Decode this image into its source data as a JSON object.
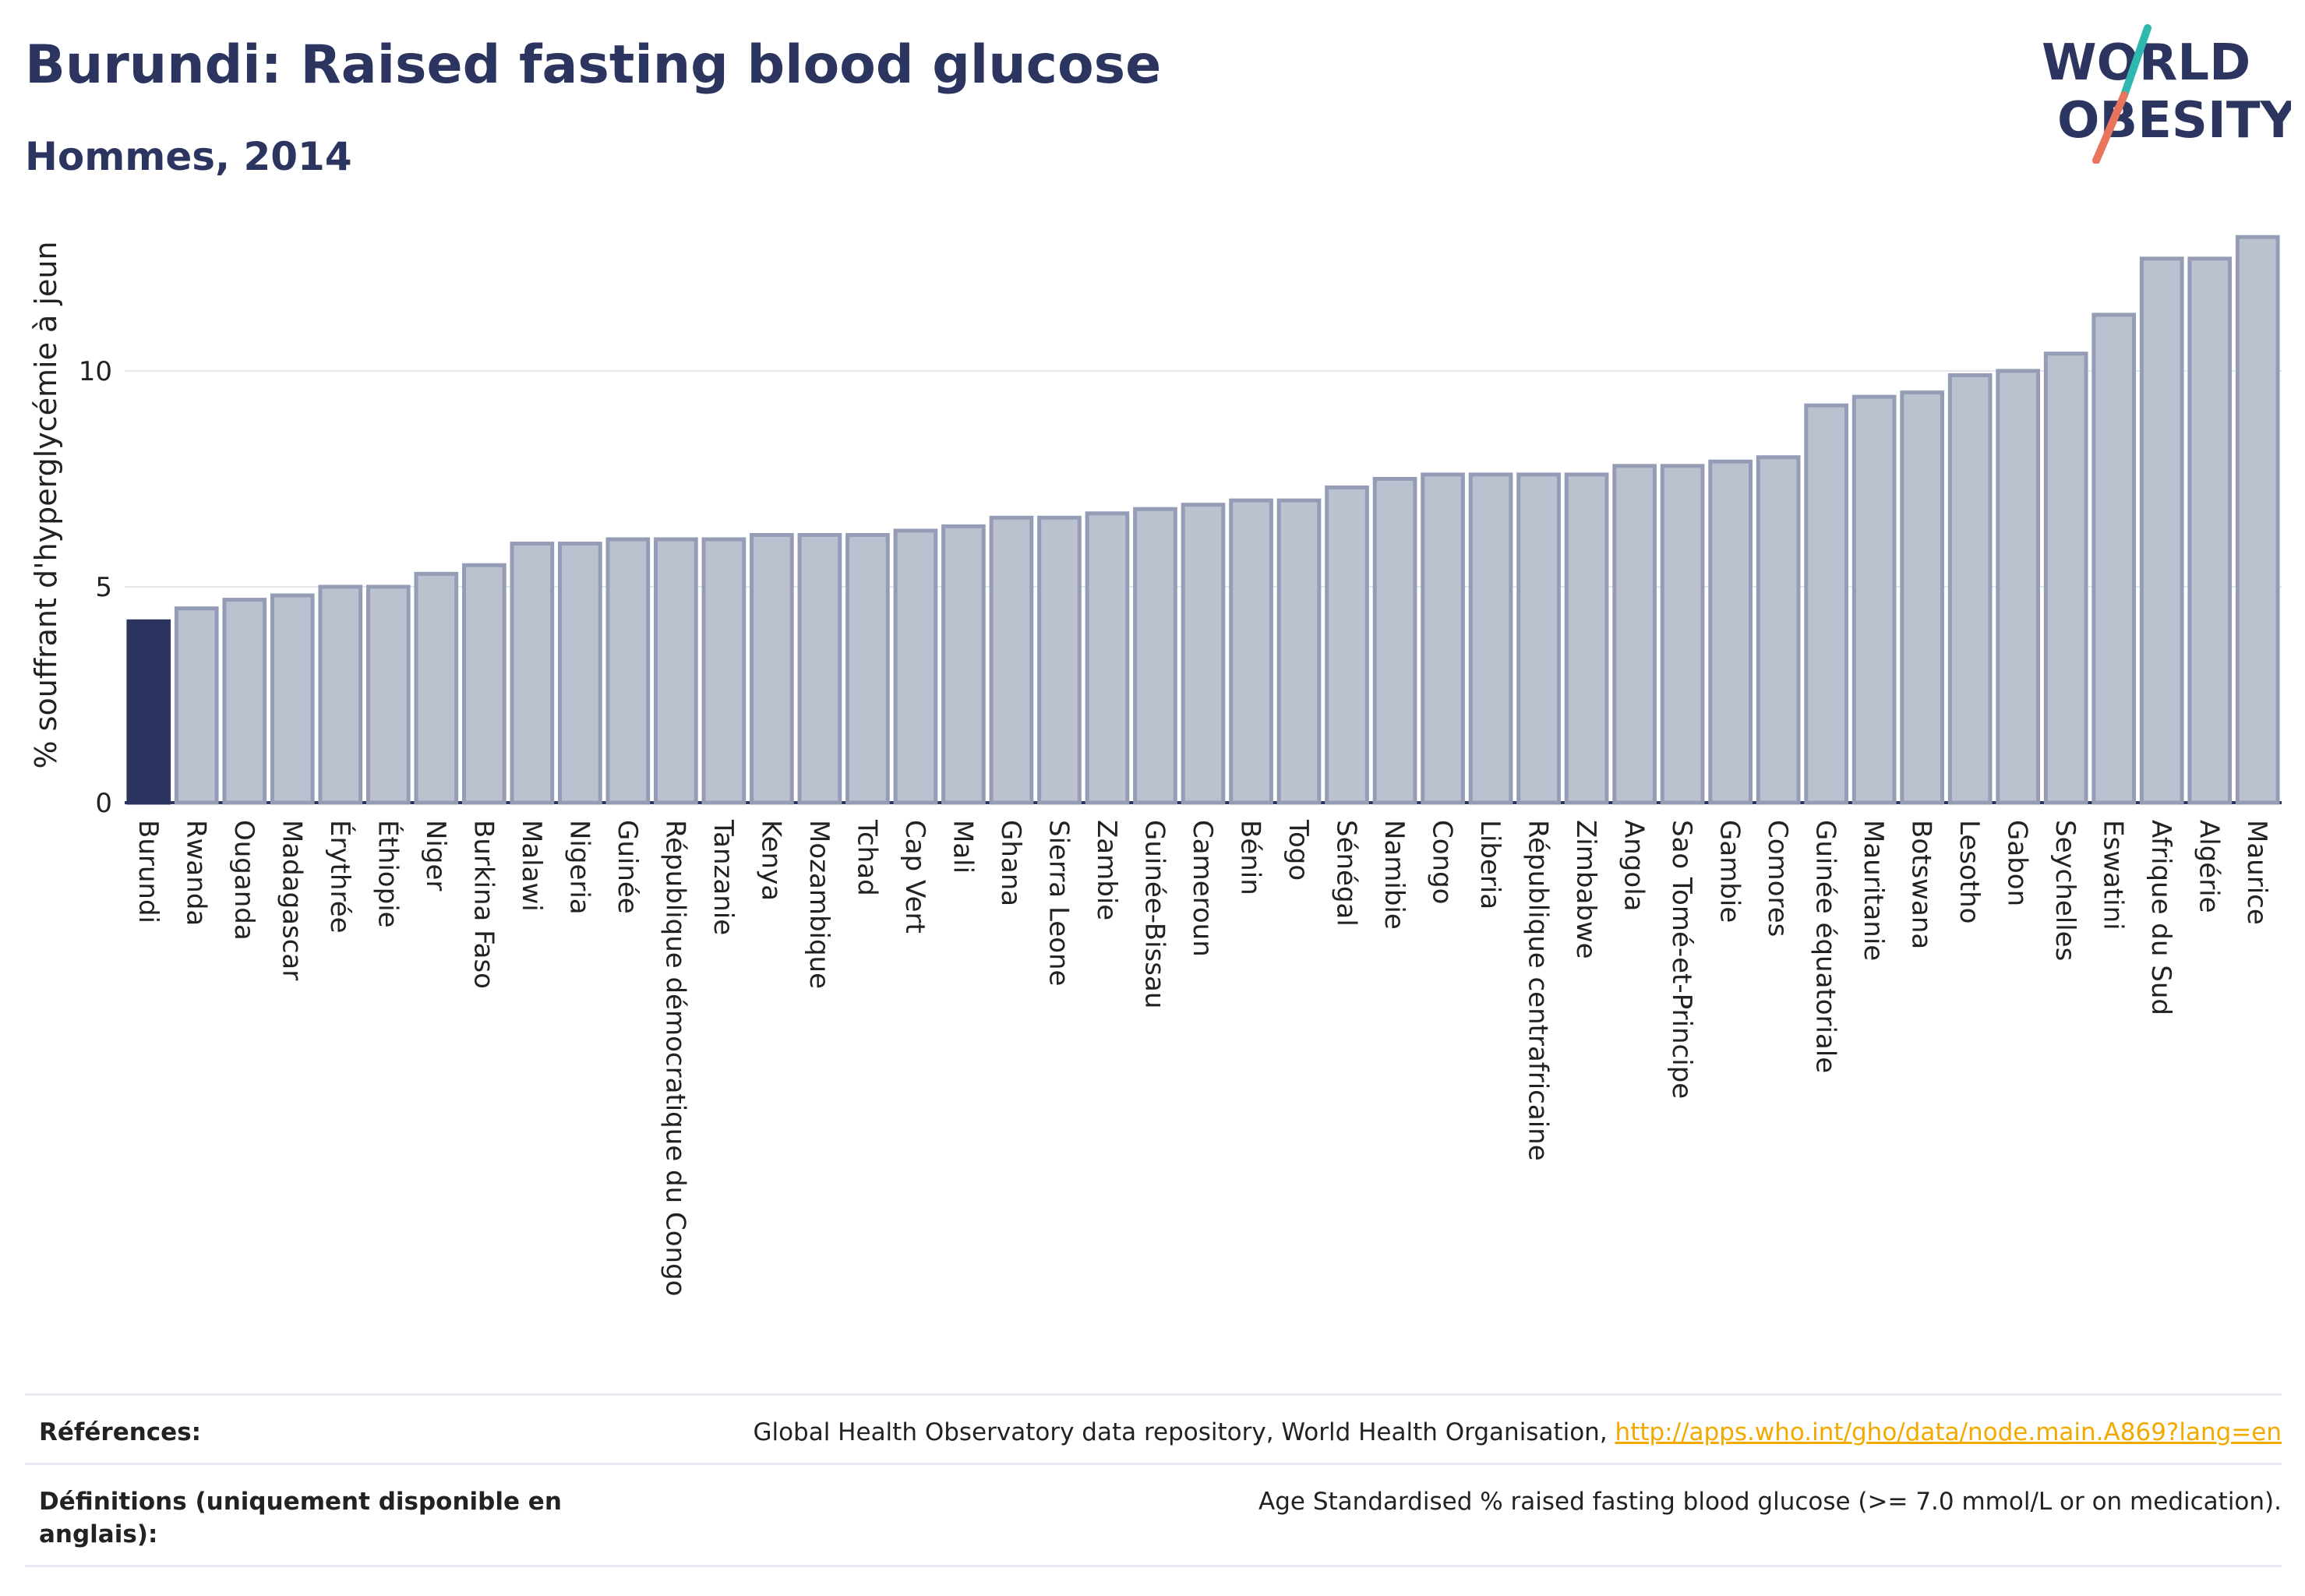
{
  "title": "Burundi: Raised fasting blood glucose",
  "subtitle": "Hommes, 2014",
  "logo": {
    "line1": "WORLD",
    "line2": "OBESITY"
  },
  "colors": {
    "title": "#2b3560",
    "highlight_bar": "#2b3560",
    "other_bar_fill": "#bcc1cf",
    "other_bar_stroke": "#959cb6",
    "link": "#f2a900",
    "logo_slash_top": "#2fb8b0",
    "logo_slash_bottom": "#e8745e"
  },
  "chart_data": {
    "type": "bar",
    "ylabel": "% souffrant d'hyperglycémie à jeun",
    "ylim": [
      0,
      13.5
    ],
    "yticks": [
      0,
      5,
      10
    ],
    "highlight": "Burundi",
    "categories": [
      "Burundi",
      "Rwanda",
      "Ougandа",
      "Madagascar",
      "Érythrée",
      "Éthiopie",
      "Niger",
      "Burkina Faso",
      "Malawi",
      "Nigeria",
      "Guinée",
      "République démocratique du Congo",
      "Tanzanie",
      "Kenya",
      "Mozambique",
      "Tchad",
      "Cap Vert",
      "Mali",
      "Ghana",
      "Sierra Leone",
      "Zambie",
      "Guinée-Bissau",
      "Cameroun",
      "Bénin",
      "Togo",
      "Sénégal",
      "Namibie",
      "Congo",
      "Liberia",
      "République centrafricaine",
      "Zimbabwe",
      "Angola",
      "Sao Tomé-et-Principe",
      "Gambie",
      "Comores",
      "Guinée équatoriale",
      "Mauritanie",
      "Botswana",
      "Lesotho",
      "Gabon",
      "Seychelles",
      "Eswatini",
      "Afrique du Sud",
      "Algérie",
      "Maurice"
    ],
    "values": [
      4.2,
      4.5,
      4.7,
      4.8,
      5.0,
      5.0,
      5.3,
      5.5,
      6.0,
      6.0,
      6.1,
      6.1,
      6.1,
      6.2,
      6.2,
      6.2,
      6.3,
      6.4,
      6.6,
      6.6,
      6.7,
      6.8,
      6.9,
      7.0,
      7.0,
      7.3,
      7.5,
      7.6,
      7.6,
      7.6,
      7.6,
      7.8,
      7.8,
      7.9,
      8.0,
      9.2,
      9.4,
      9.5,
      9.9,
      10.0,
      10.4,
      11.3,
      12.6,
      12.6,
      13.1
    ]
  },
  "references": {
    "ref_label": "Références:",
    "ref_text": "Global Health Observatory data repository, World Health Organisation, ",
    "ref_link": "http://apps.who.int/gho/data/node.main.A869?lang=en",
    "def_label": "Définitions (uniquement disponible en anglais):",
    "def_text": "Age Standardised % raised fasting blood glucose (>= 7.0 mmol/L or on medication)."
  }
}
